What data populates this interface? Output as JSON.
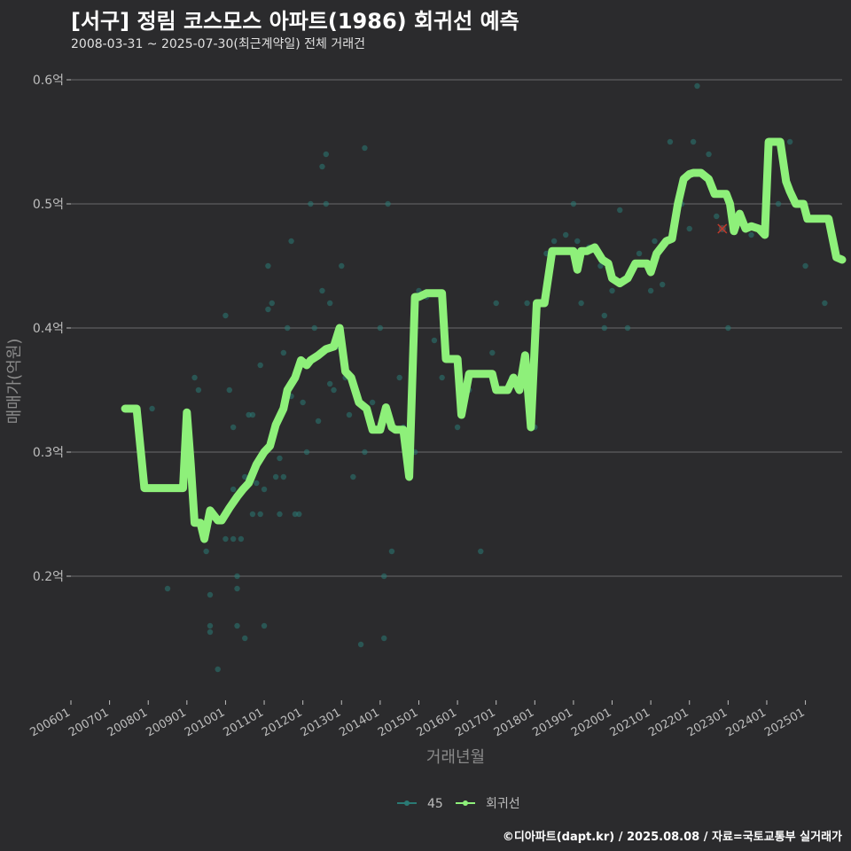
{
  "header": {
    "title": "[서구] 정림 코스모스 아파트(1986) 회귀선 예측",
    "subtitle": "2008-03-31 ~ 2025-07-30(최근계약일) 전체 거래건"
  },
  "footer": {
    "credit": "©디아파트(dapt.kr) / 2025.08.08 / 자료=국토교통부 실거래가"
  },
  "colors": {
    "background": "#2b2b2d",
    "grid": "#6a6a6a",
    "points": "#2a7a74",
    "line": "#8ef07a",
    "marker": "#c0392b"
  },
  "chart_data": {
    "type": "line",
    "title": "[서구] 정림 코스모스 아파트(1986) 회귀선 예측",
    "xlabel": "거래년월",
    "ylabel": "매매가(억원)",
    "xlim": [
      2006.0,
      2025.95
    ],
    "ylim": [
      0.1,
      0.62
    ],
    "y_ticks": [
      {
        "value": 0.2,
        "label": "0.2억"
      },
      {
        "value": 0.3,
        "label": "0.3억"
      },
      {
        "value": 0.4,
        "label": "0.4억"
      },
      {
        "value": 0.5,
        "label": "0.5억"
      },
      {
        "value": 0.6,
        "label": "0.6억"
      }
    ],
    "x_ticks": [
      {
        "value": 2006.0,
        "label": "200601"
      },
      {
        "value": 2007.0,
        "label": "200701"
      },
      {
        "value": 2008.0,
        "label": "200801"
      },
      {
        "value": 2009.0,
        "label": "200901"
      },
      {
        "value": 2010.0,
        "label": "201001"
      },
      {
        "value": 2011.0,
        "label": "201101"
      },
      {
        "value": 2012.0,
        "label": "201201"
      },
      {
        "value": 2013.0,
        "label": "201301"
      },
      {
        "value": 2014.0,
        "label": "201401"
      },
      {
        "value": 2015.0,
        "label": "201501"
      },
      {
        "value": 2016.0,
        "label": "201601"
      },
      {
        "value": 2017.0,
        "label": "201701"
      },
      {
        "value": 2018.0,
        "label": "201801"
      },
      {
        "value": 2019.0,
        "label": "201901"
      },
      {
        "value": 2020.0,
        "label": "202001"
      },
      {
        "value": 2021.0,
        "label": "202101"
      },
      {
        "value": 2022.0,
        "label": "202201"
      },
      {
        "value": 2023.0,
        "label": "202301"
      },
      {
        "value": 2024.0,
        "label": "202401"
      },
      {
        "value": 2025.0,
        "label": "202501"
      }
    ],
    "legend": [
      {
        "name": "45",
        "kind": "points"
      },
      {
        "name": "회귀선",
        "kind": "line"
      }
    ],
    "series": [
      {
        "name": "45",
        "kind": "scatter",
        "points": [
          [
            2008.1,
            0.335
          ],
          [
            2008.5,
            0.19
          ],
          [
            2009.2,
            0.36
          ],
          [
            2009.3,
            0.35
          ],
          [
            2009.4,
            0.235
          ],
          [
            2009.5,
            0.22
          ],
          [
            2009.6,
            0.16
          ],
          [
            2009.6,
            0.155
          ],
          [
            2009.6,
            0.185
          ],
          [
            2009.8,
            0.125
          ],
          [
            2010.0,
            0.23
          ],
          [
            2010.0,
            0.25
          ],
          [
            2010.0,
            0.41
          ],
          [
            2010.1,
            0.35
          ],
          [
            2010.2,
            0.32
          ],
          [
            2010.2,
            0.27
          ],
          [
            2010.2,
            0.23
          ],
          [
            2010.3,
            0.16
          ],
          [
            2010.3,
            0.2
          ],
          [
            2010.3,
            0.19
          ],
          [
            2010.4,
            0.23
          ],
          [
            2010.5,
            0.15
          ],
          [
            2010.5,
            0.28
          ],
          [
            2010.6,
            0.33
          ],
          [
            2010.7,
            0.33
          ],
          [
            2010.7,
            0.25
          ],
          [
            2010.8,
            0.275
          ],
          [
            2010.9,
            0.37
          ],
          [
            2010.9,
            0.25
          ],
          [
            2011.0,
            0.27
          ],
          [
            2011.0,
            0.16
          ],
          [
            2011.1,
            0.415
          ],
          [
            2011.1,
            0.45
          ],
          [
            2011.2,
            0.42
          ],
          [
            2011.3,
            0.28
          ],
          [
            2011.4,
            0.295
          ],
          [
            2011.4,
            0.25
          ],
          [
            2011.5,
            0.28
          ],
          [
            2011.5,
            0.38
          ],
          [
            2011.6,
            0.4
          ],
          [
            2011.7,
            0.47
          ],
          [
            2011.7,
            0.345
          ],
          [
            2011.8,
            0.25
          ],
          [
            2011.9,
            0.25
          ],
          [
            2012.0,
            0.34
          ],
          [
            2012.1,
            0.3
          ],
          [
            2012.2,
            0.5
          ],
          [
            2012.3,
            0.4
          ],
          [
            2012.4,
            0.325
          ],
          [
            2012.5,
            0.53
          ],
          [
            2012.5,
            0.43
          ],
          [
            2012.6,
            0.54
          ],
          [
            2012.6,
            0.5
          ],
          [
            2012.7,
            0.42
          ],
          [
            2012.7,
            0.355
          ],
          [
            2012.8,
            0.35
          ],
          [
            2012.9,
            0.385
          ],
          [
            2013.0,
            0.45
          ],
          [
            2013.1,
            0.36
          ],
          [
            2013.2,
            0.33
          ],
          [
            2013.3,
            0.28
          ],
          [
            2013.5,
            0.145
          ],
          [
            2013.6,
            0.545
          ],
          [
            2013.6,
            0.3
          ],
          [
            2013.8,
            0.34
          ],
          [
            2014.0,
            0.4
          ],
          [
            2014.1,
            0.2
          ],
          [
            2014.2,
            0.5
          ],
          [
            2014.1,
            0.15
          ],
          [
            2014.3,
            0.22
          ],
          [
            2014.5,
            0.36
          ],
          [
            2014.6,
            0.32
          ],
          [
            2014.9,
            0.3
          ],
          [
            2015.0,
            0.43
          ],
          [
            2015.2,
            0.425
          ],
          [
            2015.4,
            0.39
          ],
          [
            2015.6,
            0.36
          ],
          [
            2016.0,
            0.32
          ],
          [
            2016.3,
            0.35
          ],
          [
            2016.6,
            0.22
          ],
          [
            2016.9,
            0.38
          ],
          [
            2017.0,
            0.42
          ],
          [
            2017.4,
            0.36
          ],
          [
            2017.8,
            0.42
          ],
          [
            2018.0,
            0.32
          ],
          [
            2018.3,
            0.46
          ],
          [
            2018.5,
            0.47
          ],
          [
            2018.8,
            0.475
          ],
          [
            2019.0,
            0.5
          ],
          [
            2019.1,
            0.47
          ],
          [
            2019.2,
            0.42
          ],
          [
            2019.4,
            0.465
          ],
          [
            2019.7,
            0.45
          ],
          [
            2019.8,
            0.41
          ],
          [
            2019.8,
            0.4
          ],
          [
            2020.0,
            0.43
          ],
          [
            2020.2,
            0.495
          ],
          [
            2020.4,
            0.4
          ],
          [
            2020.7,
            0.46
          ],
          [
            2021.0,
            0.43
          ],
          [
            2021.1,
            0.47
          ],
          [
            2021.3,
            0.435
          ],
          [
            2021.5,
            0.55
          ],
          [
            2021.8,
            0.5
          ],
          [
            2022.0,
            0.48
          ],
          [
            2022.1,
            0.55
          ],
          [
            2022.2,
            0.595
          ],
          [
            2022.5,
            0.54
          ],
          [
            2022.7,
            0.49
          ],
          [
            2023.0,
            0.4
          ],
          [
            2023.2,
            0.48
          ],
          [
            2023.6,
            0.475
          ],
          [
            2024.0,
            0.51
          ],
          [
            2024.3,
            0.5
          ],
          [
            2024.6,
            0.55
          ],
          [
            2025.0,
            0.45
          ],
          [
            2025.5,
            0.42
          ],
          [
            2026.0,
            0.455
          ]
        ]
      },
      {
        "name": "회귀선",
        "kind": "line",
        "points": [
          [
            2007.4,
            0.335
          ],
          [
            2007.7,
            0.335
          ],
          [
            2007.9,
            0.271
          ],
          [
            2008.5,
            0.271
          ],
          [
            2008.9,
            0.271
          ],
          [
            2009.0,
            0.332
          ],
          [
            2009.1,
            0.29
          ],
          [
            2009.2,
            0.243
          ],
          [
            2009.35,
            0.243
          ],
          [
            2009.45,
            0.23
          ],
          [
            2009.6,
            0.253
          ],
          [
            2009.8,
            0.245
          ],
          [
            2009.9,
            0.245
          ],
          [
            2010.1,
            0.255
          ],
          [
            2010.3,
            0.264
          ],
          [
            2010.45,
            0.27
          ],
          [
            2010.6,
            0.275
          ],
          [
            2010.8,
            0.29
          ],
          [
            2011.0,
            0.3
          ],
          [
            2011.15,
            0.305
          ],
          [
            2011.3,
            0.322
          ],
          [
            2011.5,
            0.335
          ],
          [
            2011.6,
            0.35
          ],
          [
            2011.8,
            0.36
          ],
          [
            2011.95,
            0.374
          ],
          [
            2012.1,
            0.37
          ],
          [
            2012.2,
            0.374
          ],
          [
            2012.4,
            0.378
          ],
          [
            2012.6,
            0.383
          ],
          [
            2012.8,
            0.385
          ],
          [
            2012.95,
            0.4
          ],
          [
            2013.1,
            0.365
          ],
          [
            2013.25,
            0.36
          ],
          [
            2013.45,
            0.34
          ],
          [
            2013.65,
            0.335
          ],
          [
            2013.8,
            0.318
          ],
          [
            2014.0,
            0.318
          ],
          [
            2014.15,
            0.336
          ],
          [
            2014.3,
            0.32
          ],
          [
            2014.4,
            0.318
          ],
          [
            2014.6,
            0.318
          ],
          [
            2014.75,
            0.28
          ],
          [
            2014.9,
            0.425
          ],
          [
            2015.0,
            0.425
          ],
          [
            2015.2,
            0.428
          ],
          [
            2015.6,
            0.428
          ],
          [
            2015.7,
            0.375
          ],
          [
            2016.0,
            0.375
          ],
          [
            2016.1,
            0.33
          ],
          [
            2016.3,
            0.363
          ],
          [
            2016.6,
            0.363
          ],
          [
            2016.9,
            0.363
          ],
          [
            2017.0,
            0.35
          ],
          [
            2017.3,
            0.35
          ],
          [
            2017.45,
            0.36
          ],
          [
            2017.6,
            0.35
          ],
          [
            2017.75,
            0.378
          ],
          [
            2017.9,
            0.32
          ],
          [
            2018.05,
            0.42
          ],
          [
            2018.25,
            0.42
          ],
          [
            2018.45,
            0.462
          ],
          [
            2018.7,
            0.462
          ],
          [
            2019.0,
            0.462
          ],
          [
            2019.1,
            0.447
          ],
          [
            2019.2,
            0.462
          ],
          [
            2019.35,
            0.462
          ],
          [
            2019.55,
            0.465
          ],
          [
            2019.75,
            0.455
          ],
          [
            2019.9,
            0.452
          ],
          [
            2020.0,
            0.44
          ],
          [
            2020.2,
            0.436
          ],
          [
            2020.4,
            0.44
          ],
          [
            2020.6,
            0.452
          ],
          [
            2020.9,
            0.452
          ],
          [
            2021.0,
            0.445
          ],
          [
            2021.15,
            0.46
          ],
          [
            2021.4,
            0.47
          ],
          [
            2021.55,
            0.472
          ],
          [
            2021.7,
            0.5
          ],
          [
            2021.85,
            0.52
          ],
          [
            2022.0,
            0.524
          ],
          [
            2022.1,
            0.525
          ],
          [
            2022.3,
            0.525
          ],
          [
            2022.5,
            0.52
          ],
          [
            2022.65,
            0.508
          ],
          [
            2022.8,
            0.508
          ],
          [
            2022.95,
            0.508
          ],
          [
            2023.05,
            0.5
          ],
          [
            2023.15,
            0.478
          ],
          [
            2023.3,
            0.492
          ],
          [
            2023.45,
            0.48
          ],
          [
            2023.6,
            0.482
          ],
          [
            2023.8,
            0.48
          ],
          [
            2023.95,
            0.475
          ],
          [
            2024.05,
            0.55
          ],
          [
            2024.35,
            0.55
          ],
          [
            2024.5,
            0.518
          ],
          [
            2024.6,
            0.51
          ],
          [
            2024.75,
            0.5
          ],
          [
            2024.95,
            0.5
          ],
          [
            2025.05,
            0.488
          ],
          [
            2025.35,
            0.488
          ],
          [
            2025.6,
            0.488
          ],
          [
            2025.8,
            0.457
          ],
          [
            2025.95,
            0.455
          ]
        ]
      }
    ],
    "markers": [
      {
        "name": "latest-transaction",
        "x": 2022.85,
        "y": 0.48,
        "symbol": "x"
      }
    ]
  }
}
